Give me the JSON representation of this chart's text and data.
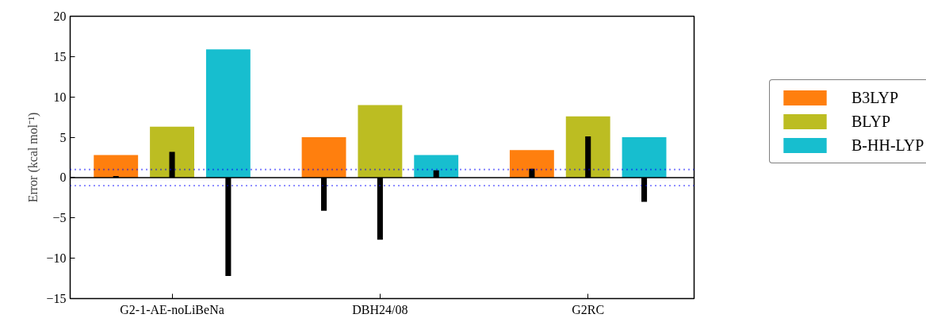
{
  "chart_data": {
    "type": "bar",
    "ylabel": "Error (kcal mol⁻¹)",
    "categories": [
      "G2-1-AE-noLiBeNa",
      "DBH24/08",
      "G2RC"
    ],
    "series": [
      {
        "name": "B3LYP",
        "color": "#ff7f0e",
        "values": [
          2.8,
          5.0,
          3.4
        ]
      },
      {
        "name": "BLYP",
        "color": "#bcbd22",
        "values": [
          6.3,
          9.0,
          7.6
        ]
      },
      {
        "name": "B-HH-LYP",
        "color": "#17becf",
        "values": [
          15.9,
          2.8,
          5.0
        ]
      },
      {
        "color": "#000000",
        "values": [
          0.2,
          -4.1,
          1.1
        ]
      },
      {
        "color": "#000000",
        "values": [
          3.2,
          -7.7,
          5.1
        ]
      },
      {
        "color": "#000000",
        "values": [
          -12.2,
          0.9,
          -3.0
        ]
      }
    ],
    "ylim": [
      -15,
      20
    ],
    "yticks": [
      {
        "value": -15,
        "label": "−15"
      },
      {
        "value": -10,
        "label": "−10"
      },
      {
        "value": -5,
        "label": "−5"
      },
      0,
      5,
      10,
      15,
      20
    ],
    "ref_lines": [
      {
        "axis": "y",
        "value": 0,
        "color": "#000000",
        "line_style": "solid"
      },
      {
        "axis": "y",
        "value": 1,
        "color": "#0000ff",
        "line_style": "dotted"
      },
      {
        "axis": "y",
        "value": -1,
        "color": "#0000ff",
        "line_style": "dotted"
      }
    ],
    "grid": false,
    "legend": "right"
  }
}
